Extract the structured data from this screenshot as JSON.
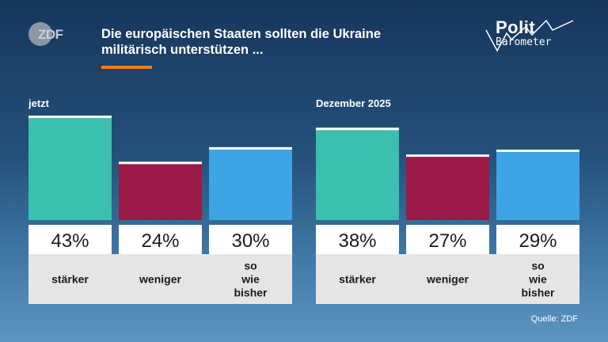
{
  "header": {
    "logo_text": "ZDF",
    "title": "Die europäischen Staaten sollten die Ukraine militärisch unterstützen ...",
    "brand_line1": "Polit",
    "brand_line2": "Barometer"
  },
  "colors": {
    "stronger": "#3bbfae",
    "less": "#9b1a47",
    "same": "#3da4e6",
    "accent": "#f07d1b"
  },
  "chart_data": [
    {
      "type": "bar",
      "title": "jetzt",
      "categories": [
        "stärker",
        "weniger",
        "so wie bisher"
      ],
      "values": [
        43,
        24,
        30
      ],
      "value_labels": [
        "43%",
        "24%",
        "30%"
      ]
    },
    {
      "type": "bar",
      "title": "Dezember 2025",
      "categories": [
        "stärker",
        "weniger",
        "so wie bisher"
      ],
      "values": [
        38,
        27,
        29
      ],
      "value_labels": [
        "38%",
        "27%",
        "29%"
      ]
    }
  ],
  "footer": {
    "source": "Quelle: ZDF"
  }
}
